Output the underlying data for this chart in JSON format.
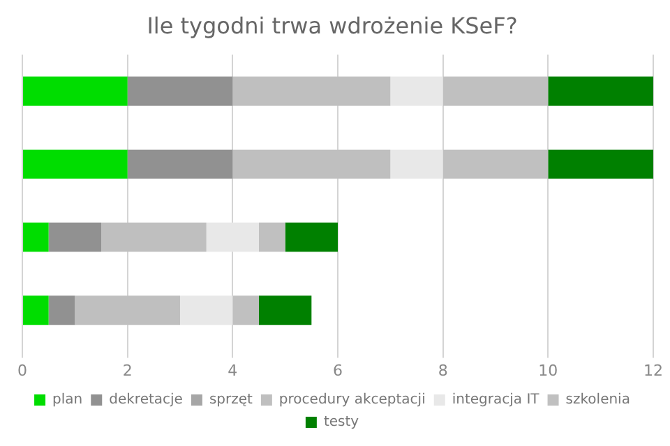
{
  "chart_data": {
    "type": "bar",
    "orientation": "horizontal",
    "stacked": true,
    "title": "Ile tygodni trwa wdrożenie KSeF?",
    "categories": [
      null,
      null,
      null,
      null
    ],
    "series": [
      {
        "name": "plan",
        "color": "#00dd00",
        "values": [
          2,
          2,
          0.5,
          0.5
        ]
      },
      {
        "name": "dekretacje",
        "color": "#919191",
        "values": [
          2,
          2,
          1,
          0.5
        ]
      },
      {
        "name": "sprzęt",
        "color": "#a6a6a6",
        "values": [
          0,
          0,
          0,
          0
        ]
      },
      {
        "name": "procedury akceptacji",
        "color": "#bfbfbf",
        "values": [
          3,
          3,
          2,
          2
        ]
      },
      {
        "name": "integracja IT",
        "color": "#e8e8e8",
        "values": [
          1,
          1,
          1,
          1
        ]
      },
      {
        "name": "szkolenia",
        "color": "#c0c0c0",
        "values": [
          2,
          2,
          0.5,
          0.5
        ]
      },
      {
        "name": "testy",
        "color": "#008000",
        "values": [
          2,
          2,
          1,
          1
        ]
      }
    ],
    "xlim": [
      0,
      12
    ],
    "xticks": [
      0,
      2,
      4,
      6,
      8,
      10,
      12
    ],
    "grid": "x",
    "legend": "bottom",
    "tick_labels": "x"
  }
}
